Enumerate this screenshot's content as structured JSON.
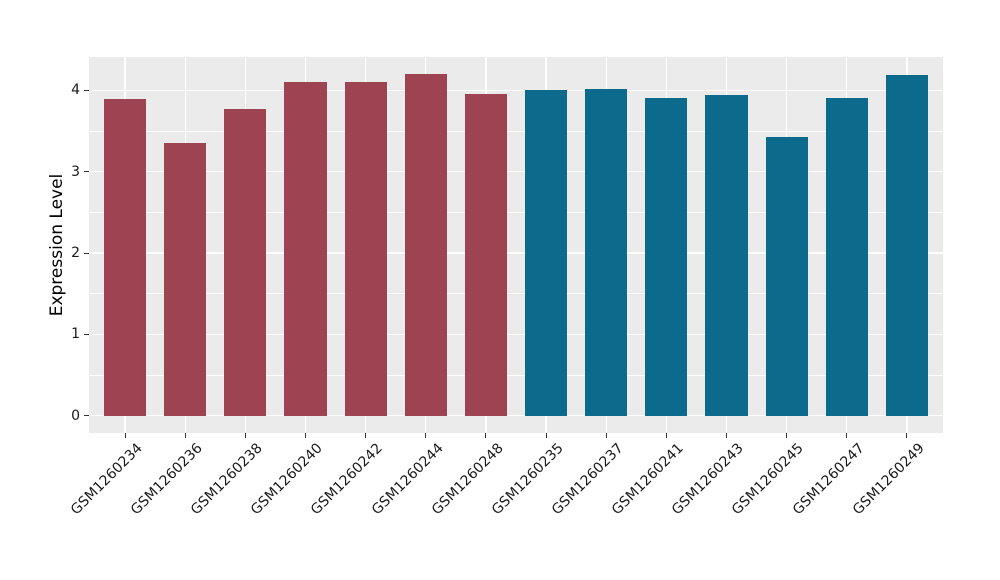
{
  "figure": {
    "background": "#FFFFFF",
    "panel_background": "#EBEBEB",
    "gridline_color": "#FFFFFF",
    "tick_mark_color": "#333333",
    "axis_text_color": "#1A1A1A",
    "axis_title_color": "#000000"
  },
  "chart_data": {
    "type": "bar",
    "title": "",
    "xlabel": "",
    "ylabel": "Expression Level",
    "categories": [
      "GSM1260234",
      "GSM1260236",
      "GSM1260238",
      "GSM1260240",
      "GSM1260242",
      "GSM1260244",
      "GSM1260248",
      "GSM1260235",
      "GSM1260237",
      "GSM1260241",
      "GSM1260243",
      "GSM1260245",
      "GSM1260247",
      "GSM1260249"
    ],
    "values": [
      3.89,
      3.35,
      3.77,
      4.1,
      4.1,
      4.2,
      3.96,
      4.0,
      4.02,
      3.91,
      3.94,
      3.42,
      3.9,
      4.19
    ],
    "bar_groups": [
      0,
      0,
      0,
      0,
      0,
      0,
      0,
      1,
      1,
      1,
      1,
      1,
      1,
      1
    ],
    "group_colors": [
      "#9D4351",
      "#0C6A8C"
    ],
    "yticks": [
      0,
      1,
      2,
      3,
      4
    ],
    "minor_yticks": [
      0.5,
      1.5,
      2.5,
      3.5
    ],
    "ylim": [
      0,
      4.41
    ],
    "bar_width_fraction": 0.7,
    "grid": true,
    "legend": "none"
  }
}
